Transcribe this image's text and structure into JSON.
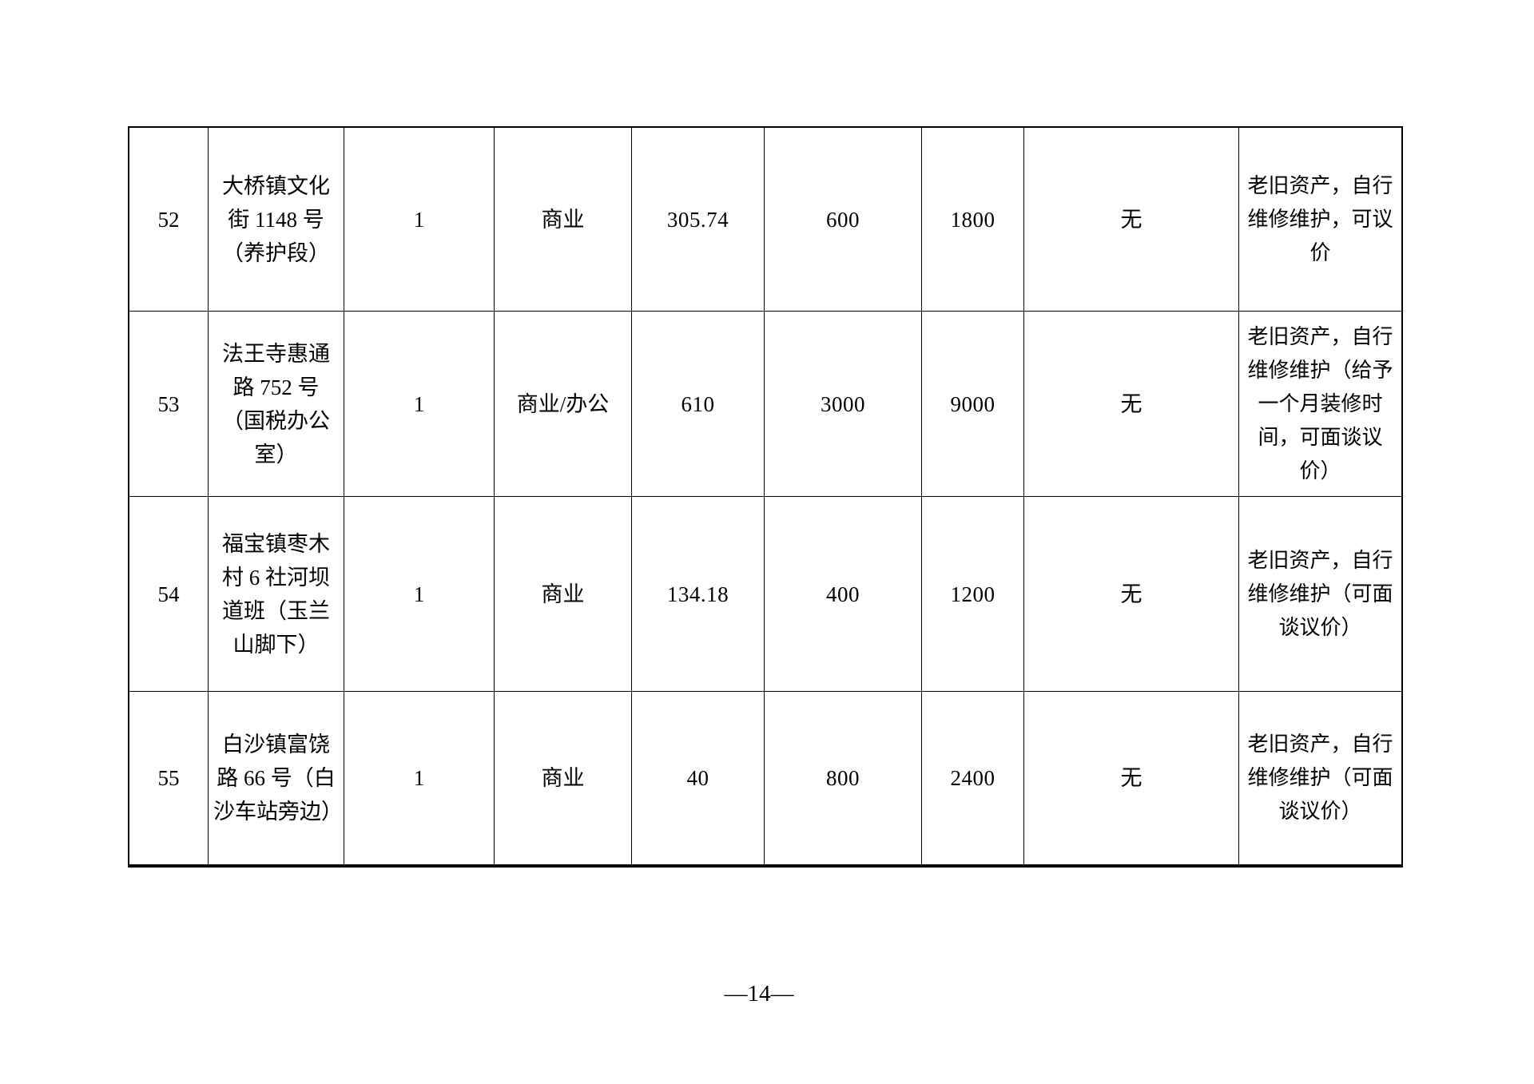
{
  "page": {
    "number_label": "—14—"
  },
  "table": {
    "rows": [
      {
        "cells": [
          "52",
          "大桥镇文化街 1148 号（养护段）",
          "1",
          "商业",
          "305.74",
          "600",
          "1800",
          "无",
          "老旧资产，自行维修维护，可议价"
        ]
      },
      {
        "cells": [
          "53",
          "法王寺惠通路 752 号（国税办公室）",
          "1",
          "商业/办公",
          "610",
          "3000",
          "9000",
          "无",
          "老旧资产，自行维修维护（给予一个月装修时间，可面谈议价）"
        ]
      },
      {
        "cells": [
          "54",
          "福宝镇枣木村 6 社河坝道班（玉兰山脚下）",
          "1",
          "商业",
          "134.18",
          "400",
          "1200",
          "无",
          "老旧资产，自行维修维护（可面谈议价）"
        ]
      },
      {
        "cells": [
          "55",
          "白沙镇富饶路 66 号（白沙车站旁边）",
          "1",
          "商业",
          "40",
          "800",
          "2400",
          "无",
          "老旧资产，自行维修维护（可面谈议价）"
        ]
      }
    ]
  }
}
